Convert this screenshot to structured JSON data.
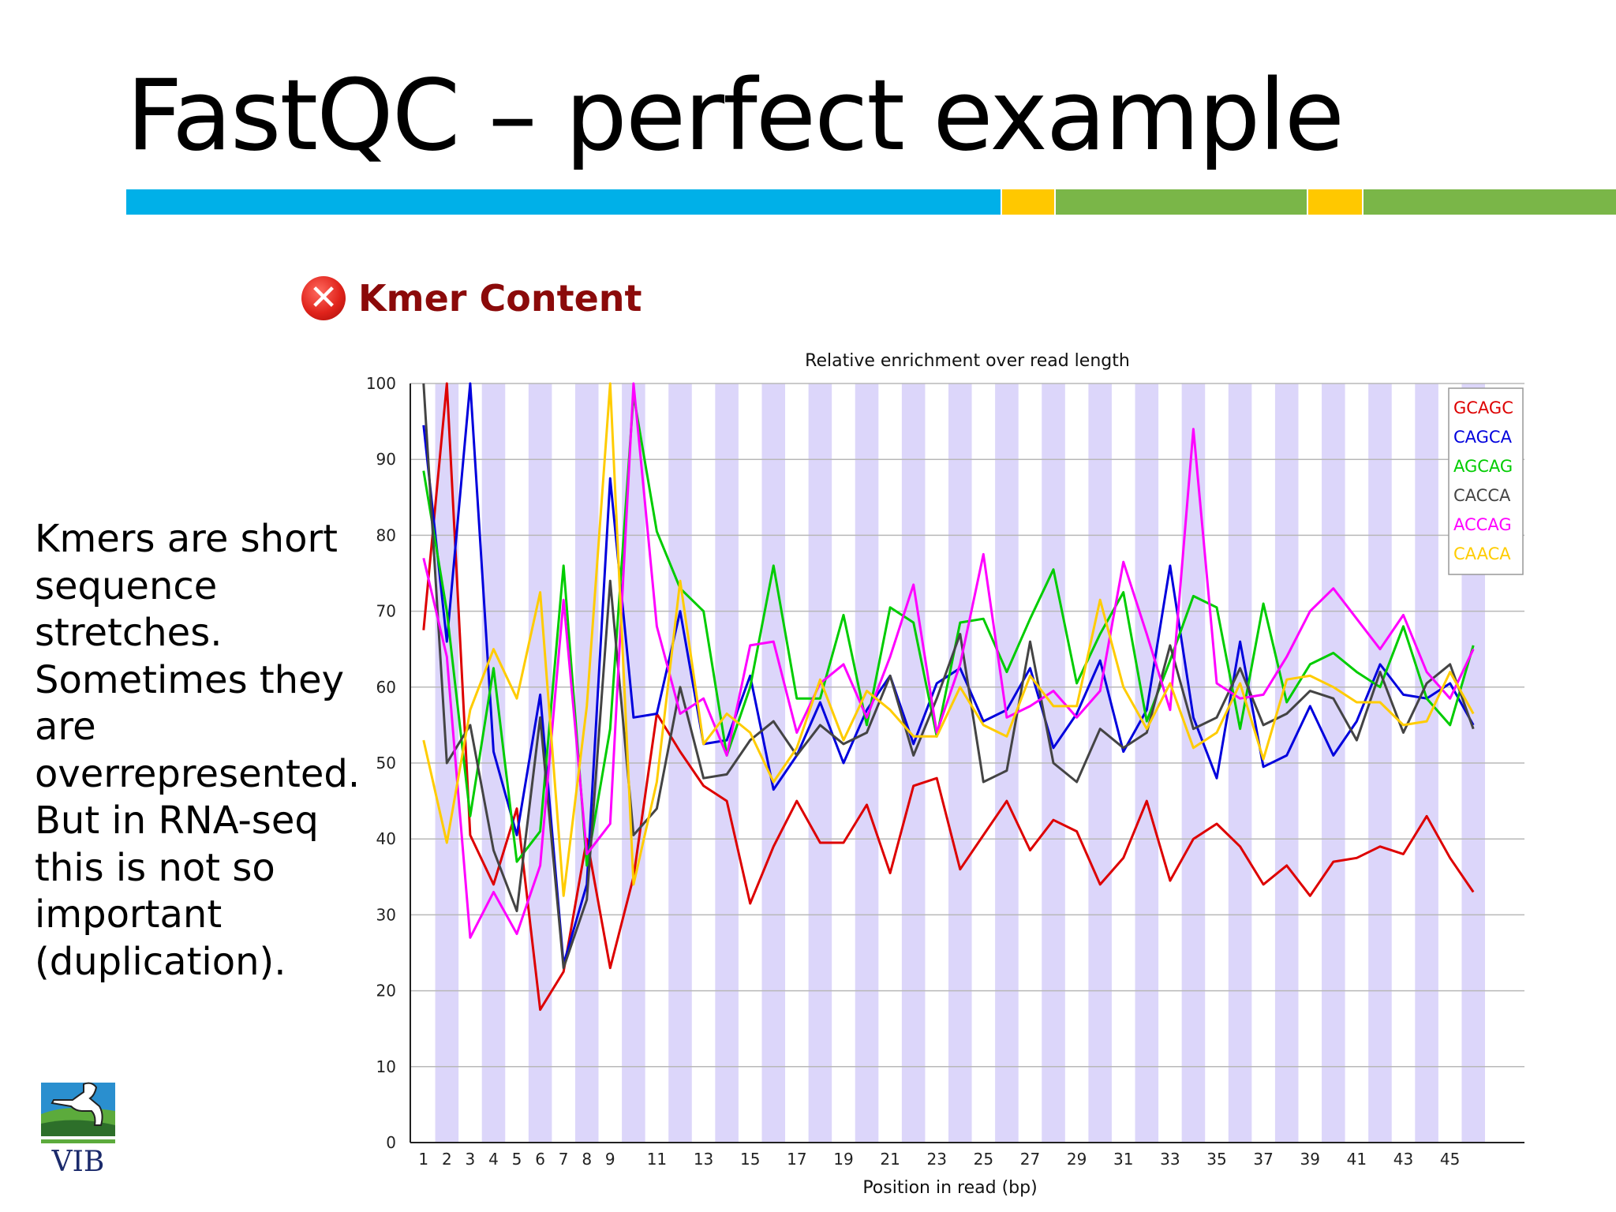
{
  "slide": {
    "title": "FastQC – perfect example",
    "bar_colors": [
      "#00b0e8",
      "#ffc800",
      "#7ab648",
      "#ffc800",
      "#7ab648"
    ],
    "side_text_lines": [
      "Kmers are short",
      "sequence",
      "stretches.",
      "Sometimes they",
      "are",
      "overrepresented.",
      "But in RNA-seq",
      "this is not so",
      "important",
      "(duplication)."
    ],
    "logo_text": "VIB"
  },
  "module": {
    "status_icon": "error-icon",
    "title": "Kmer Content"
  },
  "chart_data": {
    "type": "line",
    "title": "Relative enrichment over read length",
    "xlabel": "Position in read (bp)",
    "ylabel": "",
    "ylim": [
      0,
      100
    ],
    "yticks": [
      0,
      10,
      20,
      30,
      40,
      50,
      60,
      70,
      80,
      90,
      100
    ],
    "x": [
      1,
      2,
      3,
      4,
      5,
      6,
      7,
      8,
      9,
      10,
      11,
      12,
      13,
      14,
      15,
      16,
      17,
      18,
      19,
      20,
      21,
      22,
      23,
      24,
      25,
      26,
      27,
      28,
      29,
      30,
      31,
      32,
      33,
      34,
      35,
      36,
      37,
      38,
      39,
      40,
      41,
      42,
      43,
      44,
      45,
      46
    ],
    "xtick_labels": [
      "1",
      "2",
      "3",
      "4",
      "5",
      "6",
      "7",
      "8",
      "9",
      "11",
      "13",
      "15",
      "17",
      "19",
      "21",
      "23",
      "25",
      "27",
      "29",
      "31",
      "33",
      "35",
      "37",
      "39",
      "41",
      "43",
      "45"
    ],
    "xtick_positions": [
      1,
      2,
      3,
      4,
      5,
      6,
      7,
      8,
      9,
      11,
      13,
      15,
      17,
      19,
      21,
      23,
      25,
      27,
      29,
      31,
      33,
      35,
      37,
      39,
      41,
      43,
      45
    ],
    "grid": true,
    "legend_position": "top-right",
    "series": [
      {
        "name": "GCAGC",
        "color": "#dd0000",
        "values": [
          67.5,
          100,
          40.5,
          34,
          44,
          17.5,
          22.5,
          40,
          23,
          35,
          56.5,
          51.5,
          47,
          45,
          31.5,
          39,
          45,
          39.5,
          39.5,
          44.5,
          35.5,
          47,
          48,
          36,
          40.5,
          45,
          38.5,
          42.5,
          41,
          34,
          37.5,
          45,
          34.5,
          40,
          42,
          39,
          34,
          36.5,
          32.5,
          37,
          37.5,
          39,
          38,
          43,
          37.5,
          33
        ]
      },
      {
        "name": "CAGCA",
        "color": "#0000dd",
        "values": [
          94.5,
          66,
          100,
          51.5,
          40.5,
          59,
          23.5,
          34,
          87.5,
          56,
          56.5,
          70,
          52.5,
          53,
          61.5,
          46.5,
          51,
          58,
          50,
          57,
          61.5,
          52.5,
          60.5,
          62.5,
          55.5,
          57,
          62.5,
          52,
          56.5,
          63.5,
          51.5,
          57,
          76,
          56,
          48,
          66,
          49.5,
          51,
          57.5,
          51,
          55.5,
          63,
          59,
          58.5,
          60.5,
          55
        ]
      },
      {
        "name": "AGCAG",
        "color": "#00cc00",
        "values": [
          88.5,
          70,
          43,
          62.5,
          37,
          41,
          76,
          36.5,
          54.5,
          98.5,
          80.5,
          73,
          70,
          51,
          60,
          76,
          58.5,
          58.5,
          69.5,
          55,
          70.5,
          68.5,
          53.5,
          68.5,
          69,
          62,
          69,
          75.5,
          60.5,
          67,
          72.5,
          55.5,
          63.5,
          72,
          70.5,
          54.5,
          71,
          58,
          63,
          64.5,
          62,
          60,
          68,
          58.5,
          55,
          65.5
        ]
      },
      {
        "name": "CACCA",
        "color": "#444444",
        "values": [
          100,
          50,
          55,
          38.5,
          30.5,
          56,
          23,
          32,
          74,
          40.5,
          44,
          60,
          48,
          48.5,
          53,
          55.5,
          51,
          55,
          52.5,
          54,
          61.5,
          51,
          58.5,
          67,
          47.5,
          49,
          66,
          50,
          47.5,
          54.5,
          52,
          54,
          65.5,
          54.5,
          56,
          62.5,
          55,
          56.5,
          59.5,
          58.5,
          53,
          62,
          54,
          60.5,
          63,
          54.5
        ]
      },
      {
        "name": "ACCAG",
        "color": "#ff00ff",
        "values": [
          77,
          64,
          27,
          33,
          27.5,
          36.5,
          71.5,
          38,
          42,
          100,
          68,
          56.5,
          58.5,
          51,
          65.5,
          66,
          54,
          60.5,
          63,
          56,
          64,
          73.5,
          54,
          63,
          77.5,
          56,
          57.5,
          59.5,
          56,
          59.5,
          76.5,
          67,
          57,
          94,
          60.5,
          58.5,
          59,
          64,
          70,
          73,
          69,
          65,
          69.5,
          62,
          58.5,
          65
        ]
      },
      {
        "name": "CAACA",
        "color": "#ffcc00",
        "values": [
          53,
          39.5,
          57,
          65,
          58.5,
          72.5,
          32.5,
          57.5,
          100,
          34,
          47.5,
          74,
          52.5,
          56.5,
          54,
          47.5,
          52,
          61,
          53,
          59.5,
          57,
          53.5,
          53.5,
          60,
          55,
          53.5,
          61.5,
          57.5,
          57.5,
          71.5,
          60,
          54.5,
          60.5,
          52,
          54,
          60.5,
          50.5,
          61,
          61.5,
          60,
          58,
          58,
          55,
          55.5,
          62,
          56.5
        ]
      }
    ]
  }
}
